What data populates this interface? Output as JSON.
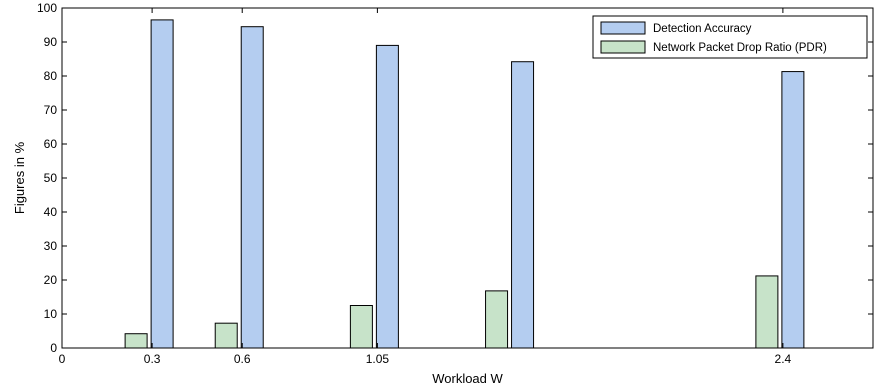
{
  "chart_data": {
    "type": "bar",
    "xlabel": "Workload W",
    "ylabel": "Figures in %",
    "xlim": [
      0,
      2.7
    ],
    "ylim": [
      0,
      100
    ],
    "x_ticks": [
      "0",
      "0.3",
      "0.6",
      "1.05",
      "2.4"
    ],
    "x_tick_values": [
      0,
      0.3,
      0.6,
      1.05,
      2.4
    ],
    "y_ticks": [
      "0",
      "10",
      "20",
      "30",
      "40",
      "50",
      "60",
      "70",
      "80",
      "90",
      "100"
    ],
    "x": [
      0.3,
      0.6,
      1.05,
      1.5,
      2.4
    ],
    "series": [
      {
        "name": "Detection Accuracy",
        "color": "#b4cdf0",
        "values": [
          96.5,
          94.5,
          89,
          84.2,
          81.3
        ]
      },
      {
        "name": "Network Packet Drop Ratio (PDR)",
        "color": "#c7e3c9",
        "values": [
          4.2,
          7.3,
          12.5,
          16.8,
          21.2
        ]
      }
    ],
    "legend_position": "top-right",
    "grid": false
  }
}
